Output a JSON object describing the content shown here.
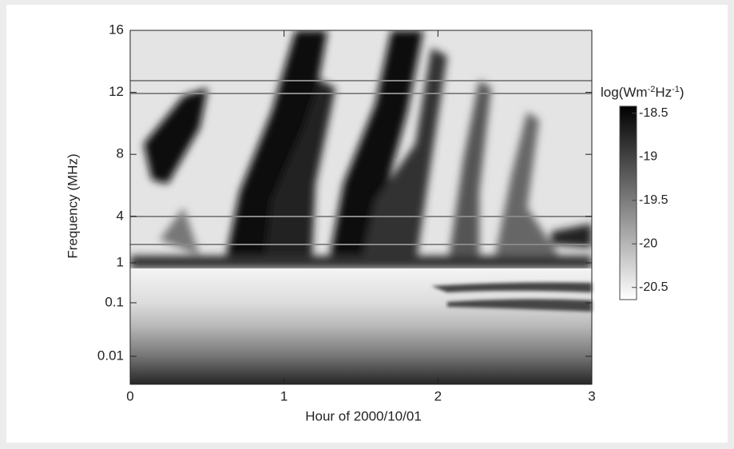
{
  "chart_data": {
    "type": "spectrogram",
    "xlabel": "Hour of 2000/10/01",
    "ylabel": "Frequency  (MHz)",
    "xlim": [
      0,
      3
    ],
    "xticks": [
      0,
      1,
      2,
      3
    ],
    "ylim": [
      0.003,
      16
    ],
    "yticks": [
      16,
      12,
      8,
      4,
      1,
      0.1,
      0.01
    ],
    "colorbar": {
      "label_parts": [
        "log(Wm",
        "-2",
        "Hz",
        "-1",
        ")"
      ],
      "lim": [
        -20.64,
        -18.42
      ],
      "ticks": [
        -18.5,
        -19,
        -19.5,
        -20,
        -20.5
      ],
      "colors": [
        "#ffffff",
        "#000000"
      ]
    }
  }
}
